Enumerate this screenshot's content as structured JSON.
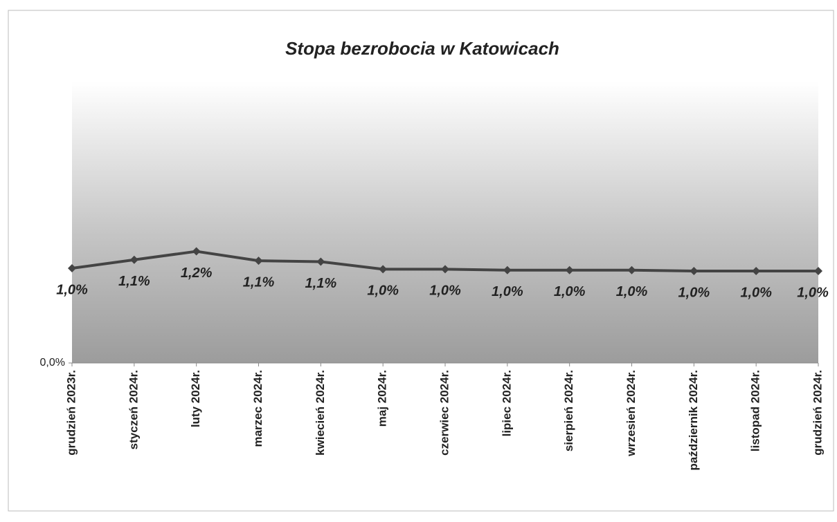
{
  "chart_data": {
    "type": "line",
    "title": "Stopa bezrobocia w Katowicach",
    "categories": [
      "grudzień 2023r.",
      "styczeń 2024r.",
      "luty 2024r.",
      "marzec 2024r.",
      "kwiecień 2024r.",
      "maj 2024r.",
      "czerwiec 2024r.",
      "lipiec 2024r.",
      "sierpień 2024r.",
      "wrzesień 2024r.",
      "październik 2024r.",
      "listopad 2024r.",
      "grudzień 2024r."
    ],
    "series": [
      {
        "name": "Stopa bezrobocia",
        "color": "#444444",
        "values": [
          1.01,
          1.1,
          1.19,
          1.09,
          1.08,
          1.0,
          1.0,
          0.99,
          0.99,
          0.99,
          0.98,
          0.98,
          0.98
        ],
        "value_labels": [
          "1,0%",
          "1,1%",
          "1,2%",
          "1,1%",
          "1,1%",
          "1,0%",
          "1,0%",
          "1,0%",
          "1,0%",
          "1,0%",
          "1,0%",
          "1,0%",
          "1,0%"
        ]
      }
    ],
    "ylim": [
      0,
      3
    ],
    "yticks": [
      {
        "value": 0,
        "label": "0,0%"
      }
    ],
    "grid": false
  }
}
